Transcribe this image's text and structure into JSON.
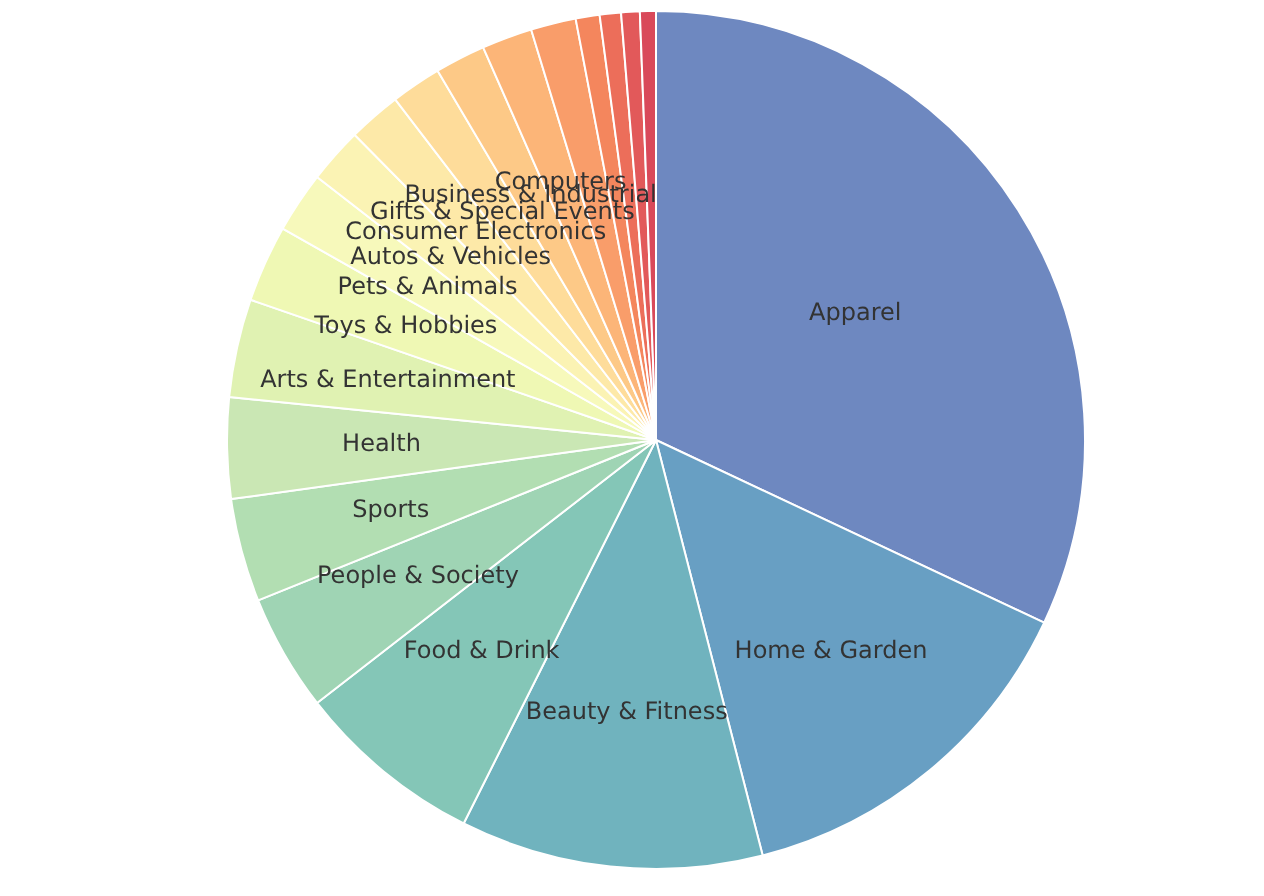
{
  "chart_data": {
    "type": "pie",
    "categories": [
      "Apparel",
      "Home & Garden",
      "Beauty & Fitness",
      "Food & Drink",
      "People & Society",
      "Sports",
      "Health",
      "Arts & Entertainment",
      "Toys & Hobbies",
      "Pets & Animals",
      "Autos & Vehicles",
      "Consumer Electronics",
      "Gifts & Special Events",
      "Business & Industrial",
      "Computers",
      null,
      null,
      null,
      null,
      null
    ],
    "values": [
      32.0,
      14.0,
      11.4,
      7.1,
      4.4,
      3.9,
      3.8,
      3.7,
      2.9,
      2.3,
      2.1,
      2.0,
      1.9,
      1.9,
      1.9,
      1.7,
      0.9,
      0.8,
      0.7,
      0.6
    ],
    "colors": [
      "#6e88c0",
      "#689fc3",
      "#70b3be",
      "#84c6b7",
      "#9fd4b4",
      "#b2deb2",
      "#cae7b4",
      "#e0f2b2",
      "#eff8b4",
      "#f7f9bb",
      "#fbf3b4",
      "#fde9a8",
      "#fedc9a",
      "#fdc987",
      "#fcb578",
      "#f99d6a",
      "#f4865d",
      "#ec6e5a",
      "#e2595a",
      "#d9495a"
    ]
  }
}
